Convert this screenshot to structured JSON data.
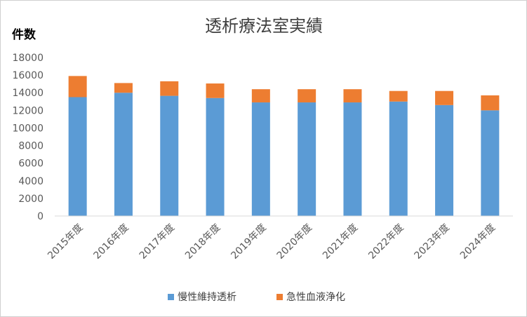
{
  "chart_data": {
    "type": "bar",
    "stacked": true,
    "title": "透析療法室実績",
    "ylabel": "件数",
    "xlabel": "",
    "ylim": [
      0,
      18000
    ],
    "yticks": [
      0,
      2000,
      4000,
      6000,
      8000,
      10000,
      12000,
      14000,
      16000,
      18000
    ],
    "grid": false,
    "legend": "bottom",
    "categories": [
      "2015年度",
      "2016年度",
      "2017年度",
      "2018年度",
      "2019年度",
      "2020年度",
      "2021年度",
      "2022年度",
      "2023年度",
      "2024年度"
    ],
    "series": [
      {
        "name": "慢性維持透析",
        "color": "#5b9bd5",
        "values": [
          13500,
          14000,
          13650,
          13400,
          12900,
          12900,
          12900,
          13000,
          12600,
          12000
        ]
      },
      {
        "name": "急性血液浄化",
        "color": "#ed7d31",
        "values": [
          2400,
          1100,
          1650,
          1650,
          1500,
          1500,
          1500,
          1200,
          1600,
          1700
        ]
      }
    ]
  }
}
